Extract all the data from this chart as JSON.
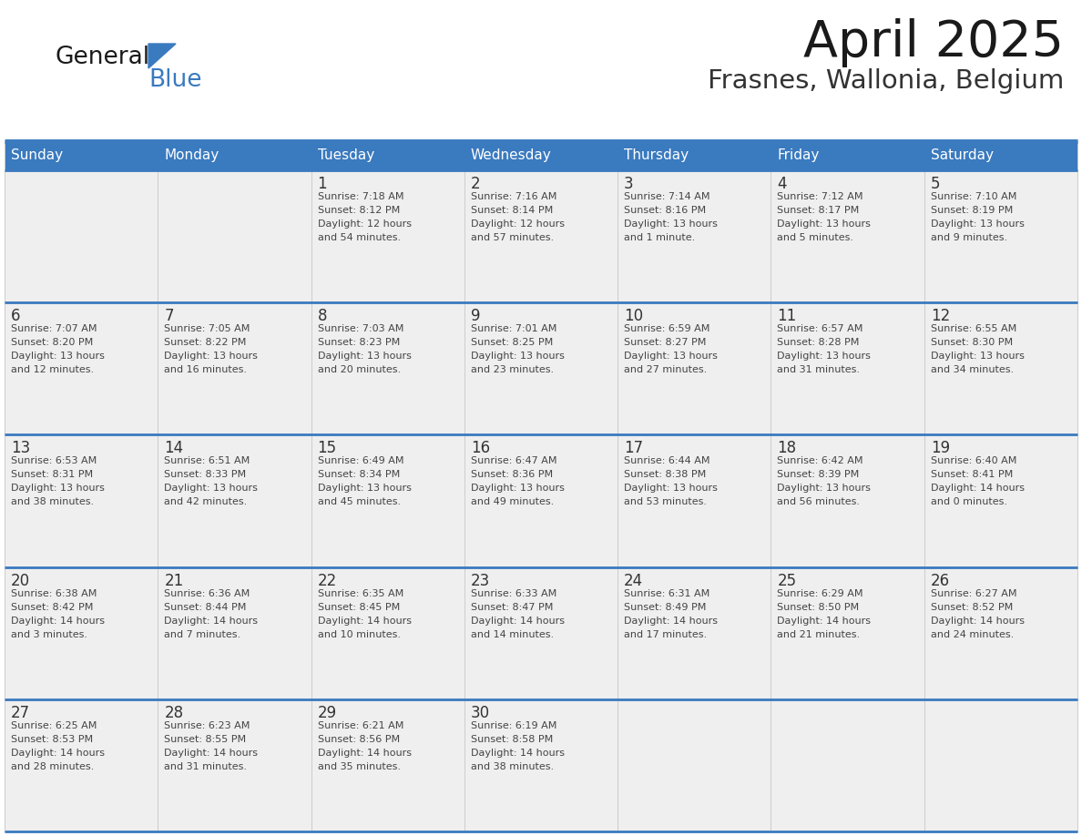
{
  "title": "April 2025",
  "subtitle": "Frasnes, Wallonia, Belgium",
  "days_of_week": [
    "Sunday",
    "Monday",
    "Tuesday",
    "Wednesday",
    "Thursday",
    "Friday",
    "Saturday"
  ],
  "header_bg": "#3a7abf",
  "header_text_color": "#ffffff",
  "cell_bg_light": "#efefef",
  "cell_bg_white": "#ffffff",
  "day_number_color": "#333333",
  "text_color": "#444444",
  "divider_color": "#3a7abf",
  "logo_text_general": "General",
  "logo_text_blue": "Blue",
  "logo_color": "#3a7abf",
  "weeks": [
    [
      {
        "day": null,
        "info": null
      },
      {
        "day": null,
        "info": null
      },
      {
        "day": 1,
        "info": "Sunrise: 7:18 AM\nSunset: 8:12 PM\nDaylight: 12 hours\nand 54 minutes."
      },
      {
        "day": 2,
        "info": "Sunrise: 7:16 AM\nSunset: 8:14 PM\nDaylight: 12 hours\nand 57 minutes."
      },
      {
        "day": 3,
        "info": "Sunrise: 7:14 AM\nSunset: 8:16 PM\nDaylight: 13 hours\nand 1 minute."
      },
      {
        "day": 4,
        "info": "Sunrise: 7:12 AM\nSunset: 8:17 PM\nDaylight: 13 hours\nand 5 minutes."
      },
      {
        "day": 5,
        "info": "Sunrise: 7:10 AM\nSunset: 8:19 PM\nDaylight: 13 hours\nand 9 minutes."
      }
    ],
    [
      {
        "day": 6,
        "info": "Sunrise: 7:07 AM\nSunset: 8:20 PM\nDaylight: 13 hours\nand 12 minutes."
      },
      {
        "day": 7,
        "info": "Sunrise: 7:05 AM\nSunset: 8:22 PM\nDaylight: 13 hours\nand 16 minutes."
      },
      {
        "day": 8,
        "info": "Sunrise: 7:03 AM\nSunset: 8:23 PM\nDaylight: 13 hours\nand 20 minutes."
      },
      {
        "day": 9,
        "info": "Sunrise: 7:01 AM\nSunset: 8:25 PM\nDaylight: 13 hours\nand 23 minutes."
      },
      {
        "day": 10,
        "info": "Sunrise: 6:59 AM\nSunset: 8:27 PM\nDaylight: 13 hours\nand 27 minutes."
      },
      {
        "day": 11,
        "info": "Sunrise: 6:57 AM\nSunset: 8:28 PM\nDaylight: 13 hours\nand 31 minutes."
      },
      {
        "day": 12,
        "info": "Sunrise: 6:55 AM\nSunset: 8:30 PM\nDaylight: 13 hours\nand 34 minutes."
      }
    ],
    [
      {
        "day": 13,
        "info": "Sunrise: 6:53 AM\nSunset: 8:31 PM\nDaylight: 13 hours\nand 38 minutes."
      },
      {
        "day": 14,
        "info": "Sunrise: 6:51 AM\nSunset: 8:33 PM\nDaylight: 13 hours\nand 42 minutes."
      },
      {
        "day": 15,
        "info": "Sunrise: 6:49 AM\nSunset: 8:34 PM\nDaylight: 13 hours\nand 45 minutes."
      },
      {
        "day": 16,
        "info": "Sunrise: 6:47 AM\nSunset: 8:36 PM\nDaylight: 13 hours\nand 49 minutes."
      },
      {
        "day": 17,
        "info": "Sunrise: 6:44 AM\nSunset: 8:38 PM\nDaylight: 13 hours\nand 53 minutes."
      },
      {
        "day": 18,
        "info": "Sunrise: 6:42 AM\nSunset: 8:39 PM\nDaylight: 13 hours\nand 56 minutes."
      },
      {
        "day": 19,
        "info": "Sunrise: 6:40 AM\nSunset: 8:41 PM\nDaylight: 14 hours\nand 0 minutes."
      }
    ],
    [
      {
        "day": 20,
        "info": "Sunrise: 6:38 AM\nSunset: 8:42 PM\nDaylight: 14 hours\nand 3 minutes."
      },
      {
        "day": 21,
        "info": "Sunrise: 6:36 AM\nSunset: 8:44 PM\nDaylight: 14 hours\nand 7 minutes."
      },
      {
        "day": 22,
        "info": "Sunrise: 6:35 AM\nSunset: 8:45 PM\nDaylight: 14 hours\nand 10 minutes."
      },
      {
        "day": 23,
        "info": "Sunrise: 6:33 AM\nSunset: 8:47 PM\nDaylight: 14 hours\nand 14 minutes."
      },
      {
        "day": 24,
        "info": "Sunrise: 6:31 AM\nSunset: 8:49 PM\nDaylight: 14 hours\nand 17 minutes."
      },
      {
        "day": 25,
        "info": "Sunrise: 6:29 AM\nSunset: 8:50 PM\nDaylight: 14 hours\nand 21 minutes."
      },
      {
        "day": 26,
        "info": "Sunrise: 6:27 AM\nSunset: 8:52 PM\nDaylight: 14 hours\nand 24 minutes."
      }
    ],
    [
      {
        "day": 27,
        "info": "Sunrise: 6:25 AM\nSunset: 8:53 PM\nDaylight: 14 hours\nand 28 minutes."
      },
      {
        "day": 28,
        "info": "Sunrise: 6:23 AM\nSunset: 8:55 PM\nDaylight: 14 hours\nand 31 minutes."
      },
      {
        "day": 29,
        "info": "Sunrise: 6:21 AM\nSunset: 8:56 PM\nDaylight: 14 hours\nand 35 minutes."
      },
      {
        "day": 30,
        "info": "Sunrise: 6:19 AM\nSunset: 8:58 PM\nDaylight: 14 hours\nand 38 minutes."
      },
      {
        "day": null,
        "info": null
      },
      {
        "day": null,
        "info": null
      },
      {
        "day": null,
        "info": null
      }
    ]
  ]
}
